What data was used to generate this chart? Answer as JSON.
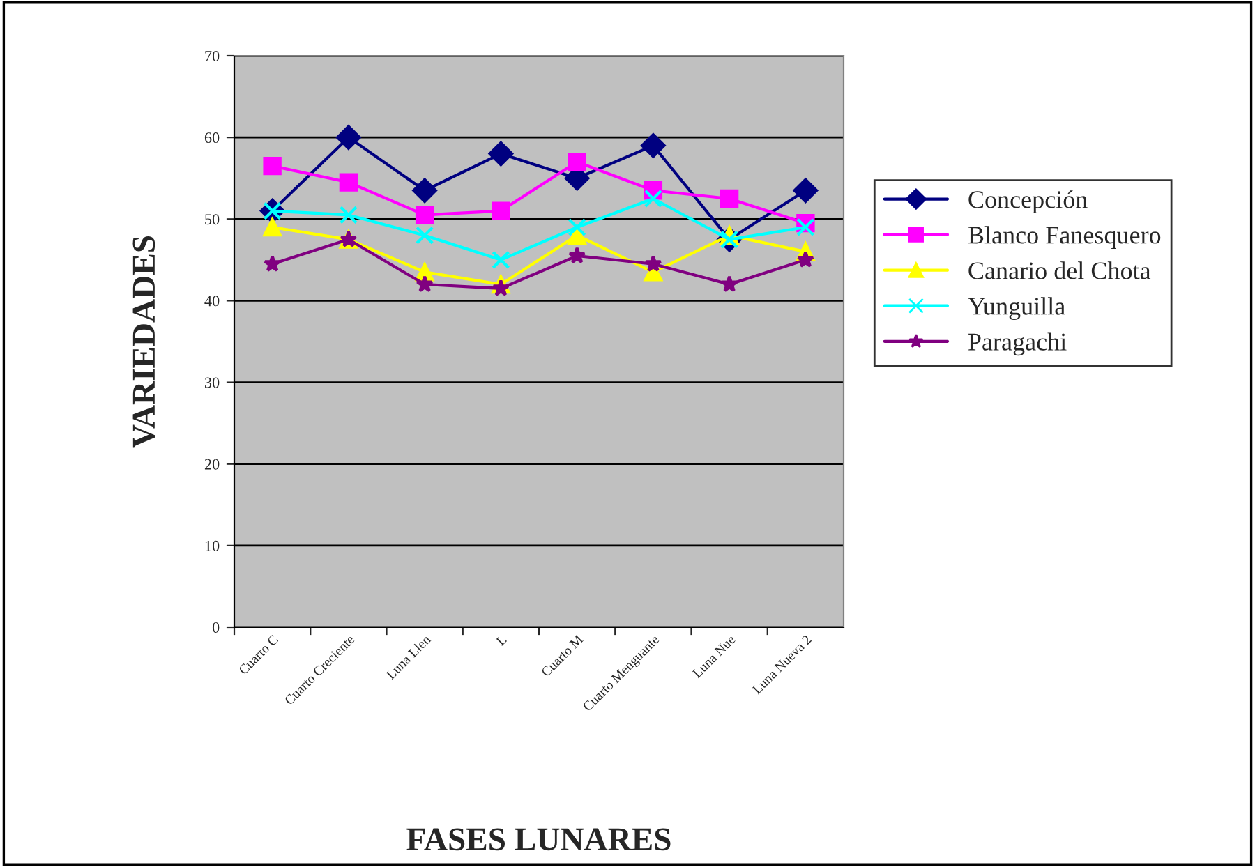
{
  "chart_data": {
    "type": "line",
    "xlabel": "FASES LUNARES",
    "ylabel": "VARIEDADES",
    "categories": [
      "Cuarto C",
      "Cuarto Creciente",
      "Luna Llen",
      "L",
      "Cuarto M",
      "Cuarto Menguante",
      "Luna Nue",
      "Luna Nueva 2"
    ],
    "series": [
      {
        "name": "Concepción",
        "color": "#000080",
        "marker": "diamond",
        "values": [
          51,
          60,
          53.5,
          58,
          55,
          59,
          47.5,
          53.5
        ]
      },
      {
        "name": "Blanco Fanesquero",
        "color": "#ff00ff",
        "marker": "square",
        "values": [
          56.5,
          54.5,
          50.5,
          51,
          57,
          53.5,
          52.5,
          49.5
        ]
      },
      {
        "name": "Canario del Chota",
        "color": "#ffff00",
        "marker": "triangle",
        "values": [
          49,
          47.5,
          43.5,
          42,
          48,
          43.5,
          48,
          46
        ]
      },
      {
        "name": "Yunguilla",
        "color": "#00ffff",
        "marker": "cross",
        "values": [
          51,
          50.5,
          48,
          45,
          49,
          52.5,
          47.5,
          49
        ]
      },
      {
        "name": "Paragachi",
        "color": "#800080",
        "marker": "star",
        "values": [
          44.5,
          47.5,
          42,
          41.5,
          45.5,
          44.5,
          42,
          45
        ]
      }
    ],
    "ylim": [
      0,
      70
    ],
    "yticks": [
      0,
      10,
      20,
      30,
      40,
      50,
      60,
      70
    ],
    "grid": "y",
    "legend": "right"
  }
}
